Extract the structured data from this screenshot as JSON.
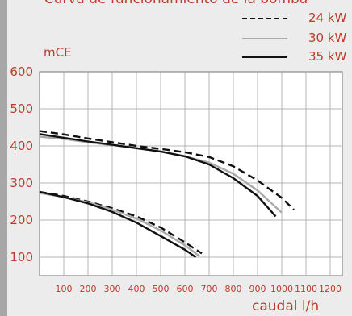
{
  "chart_data": {
    "type": "line",
    "title": "Curva de funcionamiento de la bomba",
    "xlabel": "caudal l/h",
    "ylabel": "mCE",
    "xlim": [
      0,
      1250
    ],
    "ylim": [
      50,
      600
    ],
    "x_ticks": [
      100,
      200,
      300,
      400,
      500,
      600,
      700,
      800,
      900,
      1000,
      1100,
      1200
    ],
    "y_ticks": [
      100,
      200,
      300,
      400,
      500,
      600
    ],
    "grid": true,
    "legend_position": "top-right",
    "series": [
      {
        "name": "24 kW",
        "style": "dashed",
        "color": "#111111",
        "curves": [
          {
            "x": [
              0,
              100,
              200,
              300,
              400,
              500,
              600,
              700,
              800,
              900,
              1000,
              1050
            ],
            "y": [
              440,
              431,
              420,
              410,
              400,
              392,
              383,
              370,
              345,
              307,
              260,
              228
            ]
          },
          {
            "x": [
              0,
              100,
              200,
              300,
              400,
              500,
              600,
              670
            ],
            "y": [
              276,
              265,
              250,
              232,
              210,
              180,
              140,
              110
            ]
          }
        ]
      },
      {
        "name": "30 kW",
        "style": "solid",
        "color": "#aaaaaa",
        "curves": [
          {
            "x": [
              0,
              100,
              200,
              300,
              400,
              500,
              600,
              700,
              800,
              900,
              1000
            ],
            "y": [
              425,
              419,
              410,
              402,
              394,
              385,
              372,
              355,
              325,
              280,
              220
            ]
          },
          {
            "x": [
              0,
              100,
              200,
              300,
              400,
              500,
              600,
              660
            ],
            "y": [
              273,
              262,
              248,
              228,
              204,
              172,
              132,
              103
            ]
          }
        ]
      },
      {
        "name": "35 kW",
        "style": "solid",
        "color": "#111111",
        "curves": [
          {
            "x": [
              0,
              100,
              200,
              300,
              400,
              500,
              600,
              700,
              800,
              900,
              975
            ],
            "y": [
              432,
              422,
              412,
              403,
              394,
              385,
              372,
              350,
              313,
              265,
              210
            ]
          },
          {
            "x": [
              0,
              100,
              200,
              300,
              400,
              500,
              600,
              645
            ],
            "y": [
              276,
              262,
              245,
              222,
              193,
              157,
              120,
              100
            ]
          }
        ]
      }
    ]
  }
}
